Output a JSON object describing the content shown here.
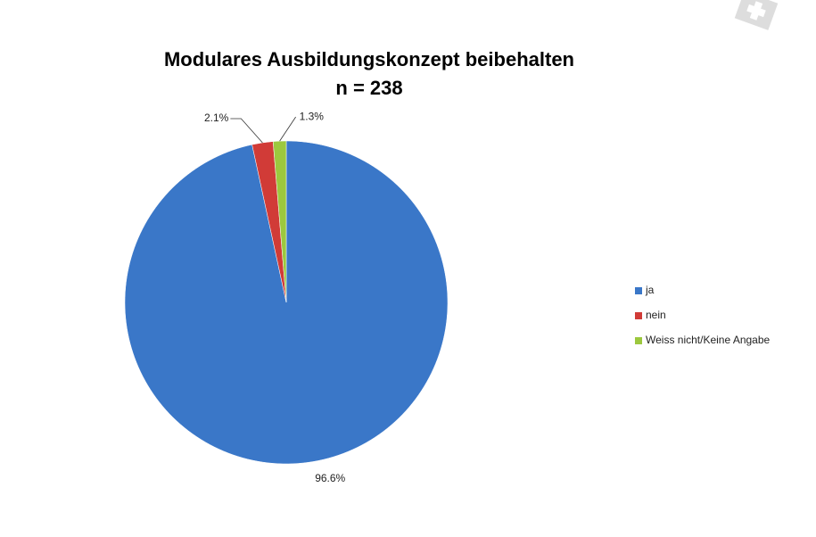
{
  "chart_data": {
    "type": "pie",
    "title": "Modulares Ausbildungskonzept beibehalten",
    "subtitle": "n = 238",
    "categories": [
      "ja",
      "nein",
      "Weiss nicht/Keine Angabe"
    ],
    "values": [
      96.6,
      2.1,
      1.3
    ],
    "value_labels": [
      "96.6%",
      "2.1%",
      "1.3%"
    ],
    "colors": [
      "#3a77c8",
      "#d13b37",
      "#9cc83e"
    ],
    "legend": "right"
  }
}
